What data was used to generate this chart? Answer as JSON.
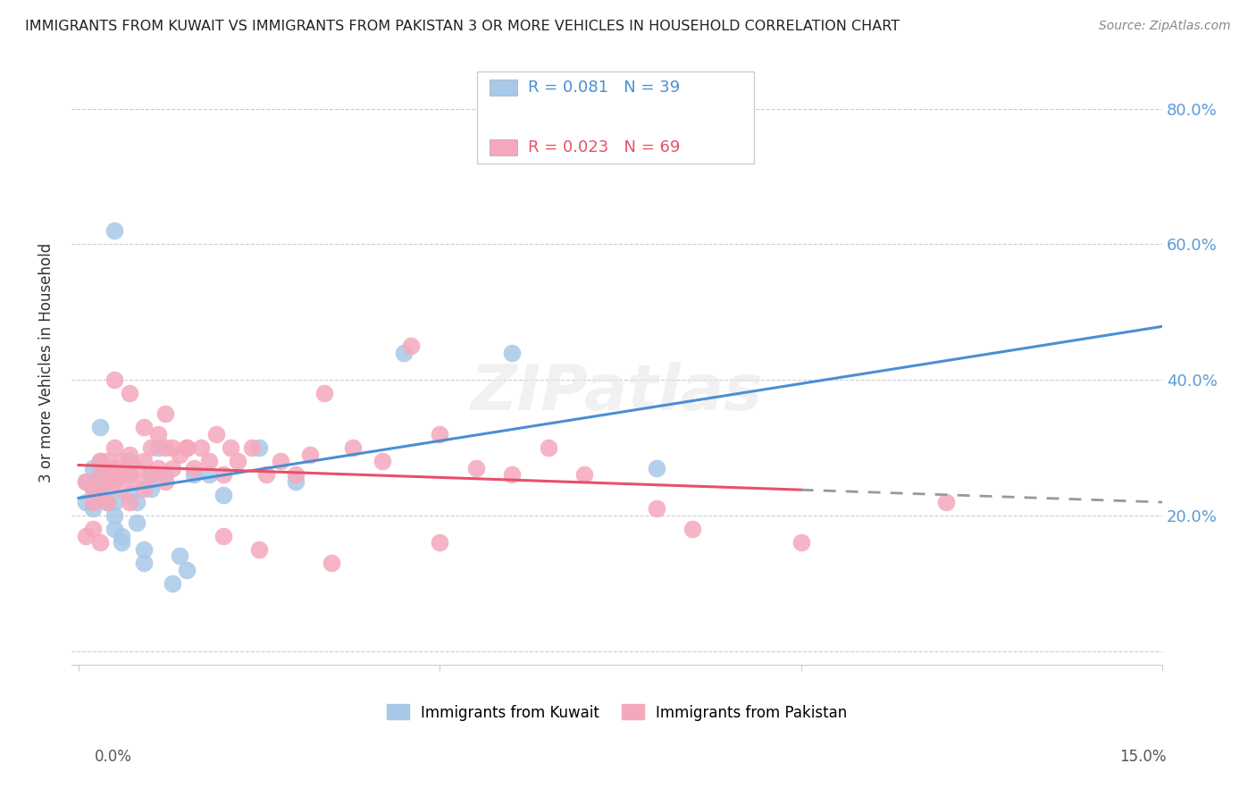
{
  "title": "IMMIGRANTS FROM KUWAIT VS IMMIGRANTS FROM PAKISTAN 3 OR MORE VEHICLES IN HOUSEHOLD CORRELATION CHART",
  "source": "Source: ZipAtlas.com",
  "ylabel": "3 or more Vehicles in Household",
  "y_ticks": [
    0.0,
    0.2,
    0.4,
    0.6,
    0.8
  ],
  "y_tick_labels": [
    "",
    "20.0%",
    "40.0%",
    "60.0%",
    "80.0%"
  ],
  "x_min": 0.0,
  "x_max": 0.15,
  "y_min": -0.02,
  "y_max": 0.87,
  "kuwait_R": 0.081,
  "kuwait_N": 39,
  "pakistan_R": 0.023,
  "pakistan_N": 69,
  "kuwait_color": "#a8c8e8",
  "pakistan_color": "#f5a8bc",
  "kuwait_line_color": "#4a8fd4",
  "pakistan_line_color": "#e8506a",
  "background_color": "#ffffff",
  "grid_color": "#cccccc",
  "title_color": "#222222",
  "right_axis_color": "#5b9bd5",
  "kuwait_scatter_x": [
    0.001,
    0.001,
    0.002,
    0.002,
    0.002,
    0.003,
    0.003,
    0.003,
    0.004,
    0.004,
    0.004,
    0.005,
    0.005,
    0.005,
    0.006,
    0.006,
    0.007,
    0.007,
    0.008,
    0.008,
    0.009,
    0.009,
    0.01,
    0.01,
    0.011,
    0.012,
    0.013,
    0.014,
    0.015,
    0.016,
    0.018,
    0.02,
    0.025,
    0.03,
    0.045,
    0.06,
    0.08,
    0.005,
    0.003
  ],
  "kuwait_scatter_y": [
    0.22,
    0.25,
    0.21,
    0.27,
    0.24,
    0.23,
    0.265,
    0.28,
    0.22,
    0.24,
    0.26,
    0.18,
    0.2,
    0.22,
    0.17,
    0.16,
    0.23,
    0.28,
    0.22,
    0.19,
    0.15,
    0.13,
    0.26,
    0.24,
    0.3,
    0.26,
    0.1,
    0.14,
    0.12,
    0.26,
    0.26,
    0.23,
    0.3,
    0.25,
    0.44,
    0.44,
    0.27,
    0.62,
    0.33
  ],
  "pakistan_scatter_x": [
    0.001,
    0.001,
    0.002,
    0.002,
    0.002,
    0.003,
    0.003,
    0.003,
    0.003,
    0.004,
    0.004,
    0.004,
    0.005,
    0.005,
    0.005,
    0.006,
    0.006,
    0.006,
    0.007,
    0.007,
    0.007,
    0.008,
    0.008,
    0.009,
    0.009,
    0.01,
    0.01,
    0.011,
    0.011,
    0.012,
    0.012,
    0.013,
    0.013,
    0.014,
    0.015,
    0.016,
    0.017,
    0.018,
    0.019,
    0.02,
    0.021,
    0.022,
    0.024,
    0.026,
    0.028,
    0.03,
    0.032,
    0.034,
    0.038,
    0.042,
    0.046,
    0.05,
    0.055,
    0.06,
    0.065,
    0.07,
    0.08,
    0.085,
    0.1,
    0.12,
    0.005,
    0.007,
    0.009,
    0.012,
    0.015,
    0.02,
    0.025,
    0.035,
    0.05
  ],
  "pakistan_scatter_y": [
    0.25,
    0.17,
    0.24,
    0.22,
    0.18,
    0.26,
    0.28,
    0.23,
    0.16,
    0.25,
    0.28,
    0.22,
    0.27,
    0.25,
    0.3,
    0.26,
    0.28,
    0.24,
    0.29,
    0.26,
    0.22,
    0.27,
    0.25,
    0.28,
    0.24,
    0.26,
    0.3,
    0.27,
    0.32,
    0.25,
    0.3,
    0.27,
    0.3,
    0.29,
    0.3,
    0.27,
    0.3,
    0.28,
    0.32,
    0.26,
    0.3,
    0.28,
    0.3,
    0.26,
    0.28,
    0.26,
    0.29,
    0.38,
    0.3,
    0.28,
    0.45,
    0.32,
    0.27,
    0.26,
    0.3,
    0.26,
    0.21,
    0.18,
    0.16,
    0.22,
    0.4,
    0.38,
    0.33,
    0.35,
    0.3,
    0.17,
    0.15,
    0.13,
    0.16
  ]
}
